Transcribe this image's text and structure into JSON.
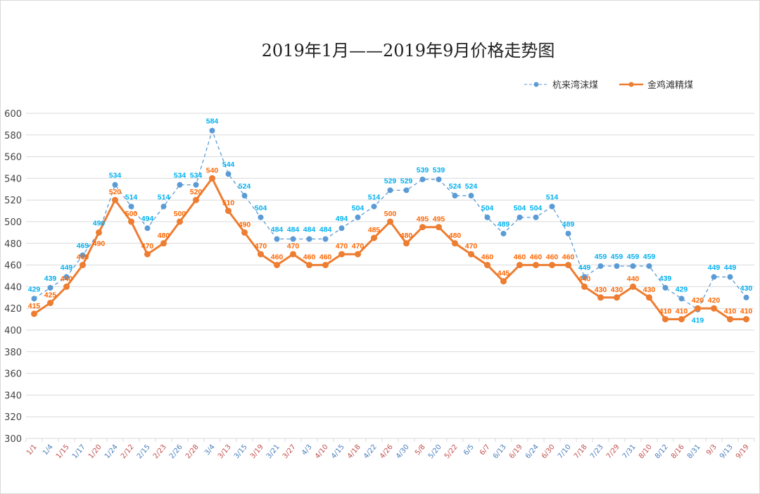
{
  "chart_data": {
    "type": "line",
    "title": "2019年1月——2019年9月价格走势图",
    "categories": [
      "1/1",
      "1/4",
      "1/15",
      "1/17",
      "1/20",
      "1/24",
      "2/12",
      "2/15",
      "2/23",
      "2/26",
      "2/28",
      "3/4",
      "3/13",
      "3/15",
      "3/19",
      "3/21",
      "3/27",
      "4/3",
      "4/10",
      "4/15",
      "4/18",
      "4/22",
      "4/26",
      "4/30",
      "5/8",
      "5/20",
      "5/22",
      "6/5",
      "6/7",
      "6/13",
      "6/19",
      "6/24",
      "6/30",
      "7/10",
      "7/18",
      "7/23",
      "7/29",
      "7/31",
      "8/10",
      "8/12",
      "8/16",
      "8/31",
      "9/3",
      "9/13",
      "9/19"
    ],
    "series": [
      {
        "name": "杭来湾沫煤",
        "line_color": "#5B9BD5",
        "label_color": "#00B0F0",
        "style": "dashed",
        "values": [
          429,
          439,
          449,
          469,
          490,
          534,
          514,
          494,
          514,
          534,
          534,
          584,
          544,
          524,
          504,
          484,
          484,
          484,
          484,
          494,
          504,
          514,
          529,
          529,
          539,
          539,
          524,
          524,
          504,
          489,
          504,
          504,
          514,
          489,
          449,
          459,
          459,
          459,
          459,
          439,
          429,
          419,
          449,
          449,
          430
        ]
      },
      {
        "name": "金鸡滩精煤",
        "line_color": "#ED7D31",
        "label_color": "#FF6600",
        "style": "solid",
        "values": [
          415,
          425,
          440,
          460,
          490,
          520,
          500,
          470,
          480,
          500,
          520,
          540,
          510,
          490,
          470,
          460,
          470,
          460,
          460,
          470,
          470,
          485,
          500,
          480,
          495,
          495,
          480,
          470,
          460,
          445,
          460,
          460,
          460,
          460,
          440,
          430,
          430,
          440,
          430,
          410,
          410,
          420,
          420,
          410,
          410
        ]
      }
    ],
    "ylim": [
      300,
      600
    ],
    "yticks": [
      300,
      320,
      340,
      360,
      380,
      400,
      420,
      440,
      460,
      480,
      500,
      520,
      540,
      560,
      580,
      600
    ],
    "grid": true,
    "legend": "top-right"
  }
}
